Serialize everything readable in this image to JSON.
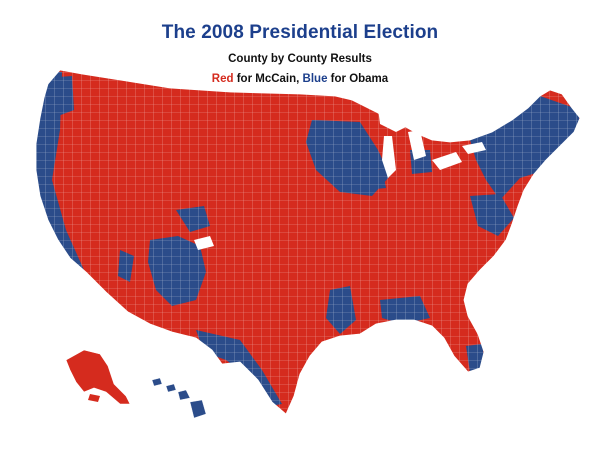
{
  "title": "The 2008 Presidential Election",
  "subtitle": "County by County Results",
  "legend": {
    "red_word": "Red",
    "red_rest": " for McCain, ",
    "blue_word": "Blue",
    "blue_rest": " for Obama"
  },
  "colors": {
    "mccain": "#d52b1e",
    "obama": "#2b4c8a",
    "title": "#1c3f8c",
    "border": "#ffffff"
  }
}
